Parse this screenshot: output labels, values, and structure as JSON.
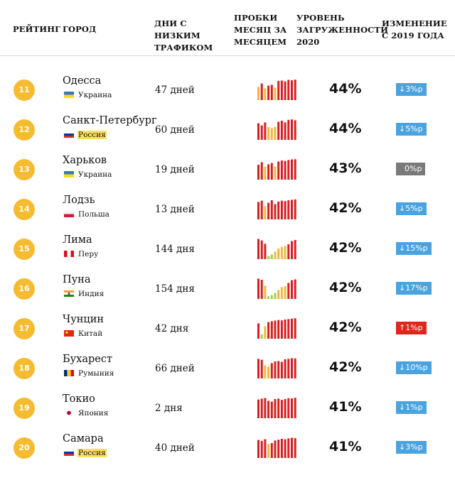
{
  "header": {
    "rank": "РЕЙТИНГ",
    "city": "ГОРОД",
    "days": "ДНИ С НИЗКИМ ТРАФИКОМ",
    "months": "ПРОБКИ МЕСЯЦ ЗА МЕСЯЦЕМ",
    "level": "УРОВЕНЬ ЗАГРУЖЕННОСТИ 2020",
    "change": "ИЗМЕНЕНИЕ С 2019 ГОДА"
  },
  "colors": {
    "badge": "#f5bc32",
    "bar_high": "#d42020",
    "bar_mid": "#f0b73a",
    "bar_low": "#9fcf45",
    "change_down": "#4aa3df",
    "change_zero": "#7a7a7a",
    "change_up": "#e0251b",
    "country_highlight": "#fddf5f"
  },
  "rows": [
    {
      "rank": "11",
      "city": "Одесса",
      "country": "Украина",
      "flag": "ukraine-flag",
      "days": "47 дней",
      "monthly": [
        0.62,
        0.78,
        0.55,
        0.68,
        0.72,
        0.58,
        0.9,
        0.92,
        0.88,
        0.95,
        0.93,
        0.96
      ],
      "level": "44%",
      "change": "↓3%р",
      "change_kind": "down"
    },
    {
      "rank": "12",
      "city": "Санкт-Петербург",
      "country": "Россия",
      "flag": "russia-flag",
      "highlight": true,
      "days": "60 дней",
      "monthly": [
        0.78,
        0.68,
        0.82,
        0.6,
        0.55,
        0.62,
        0.85,
        0.9,
        0.82,
        0.94,
        0.96,
        0.92
      ],
      "level": "44%",
      "change": "↓5%р",
      "change_kind": "down"
    },
    {
      "rank": "13",
      "city": "Харьков",
      "country": "Украина",
      "flag": "ukraine-flag",
      "days": "19 дней",
      "monthly": [
        0.7,
        0.82,
        0.6,
        0.72,
        0.78,
        0.62,
        0.85,
        0.9,
        0.88,
        0.92,
        0.95,
        0.96
      ],
      "level": "43%",
      "change": "0%р",
      "change_kind": "zero"
    },
    {
      "rank": "14",
      "city": "Лодзь",
      "country": "Польша",
      "flag": "poland-flag",
      "days": "13 дней",
      "monthly": [
        0.82,
        0.88,
        0.62,
        0.78,
        0.9,
        0.72,
        0.84,
        0.88,
        0.86,
        0.9,
        0.92,
        0.94
      ],
      "level": "42%",
      "change": "↓5%р",
      "change_kind": "down"
    },
    {
      "rank": "15",
      "city": "Лима",
      "country": "Перу",
      "flag": "peru-flag",
      "days": "144 дня",
      "monthly": [
        0.95,
        0.88,
        0.72,
        0.15,
        0.22,
        0.35,
        0.5,
        0.58,
        0.62,
        0.7,
        0.85,
        0.9
      ],
      "level": "42%",
      "change": "↓15%р",
      "change_kind": "down"
    },
    {
      "rank": "16",
      "city": "Пуна",
      "country": "Индия",
      "flag": "india-flag",
      "days": "154 дня",
      "monthly": [
        0.95,
        0.9,
        0.62,
        0.12,
        0.18,
        0.28,
        0.42,
        0.55,
        0.6,
        0.75,
        0.88,
        0.92
      ],
      "level": "42%",
      "change": "↓17%р",
      "change_kind": "down"
    },
    {
      "rank": "17",
      "city": "Чунцин",
      "country": "Китай",
      "flag": "china-flag",
      "days": "42 дня",
      "monthly": [
        0.72,
        0.2,
        0.58,
        0.78,
        0.82,
        0.85,
        0.88,
        0.86,
        0.9,
        0.92,
        0.94,
        0.96
      ],
      "level": "42%",
      "change": "↑1%р",
      "change_kind": "up"
    },
    {
      "rank": "18",
      "city": "Бухарест",
      "country": "Румыния",
      "flag": "romania-flag",
      "days": "66 дней",
      "monthly": [
        0.92,
        0.88,
        0.62,
        0.55,
        0.72,
        0.8,
        0.82,
        0.78,
        0.9,
        0.92,
        0.95,
        0.94
      ],
      "level": "42%",
      "change": "↓10%р",
      "change_kind": "down"
    },
    {
      "rank": "19",
      "city": "Токио",
      "country": "Япония",
      "flag": "japan-flag",
      "days": "2 дня",
      "monthly": [
        0.88,
        0.92,
        0.95,
        0.82,
        0.78,
        0.9,
        0.92,
        0.86,
        0.9,
        0.94,
        0.93,
        0.96
      ],
      "level": "41%",
      "change": "↓1%р",
      "change_kind": "down"
    },
    {
      "rank": "20",
      "city": "Самара",
      "country": "Россия",
      "flag": "russia-flag",
      "highlight": true,
      "days": "40 дней",
      "monthly": [
        0.85,
        0.8,
        0.88,
        0.65,
        0.7,
        0.82,
        0.86,
        0.9,
        0.88,
        0.92,
        0.95,
        0.93
      ],
      "level": "41%",
      "change": "↓3%р",
      "change_kind": "down"
    }
  ]
}
